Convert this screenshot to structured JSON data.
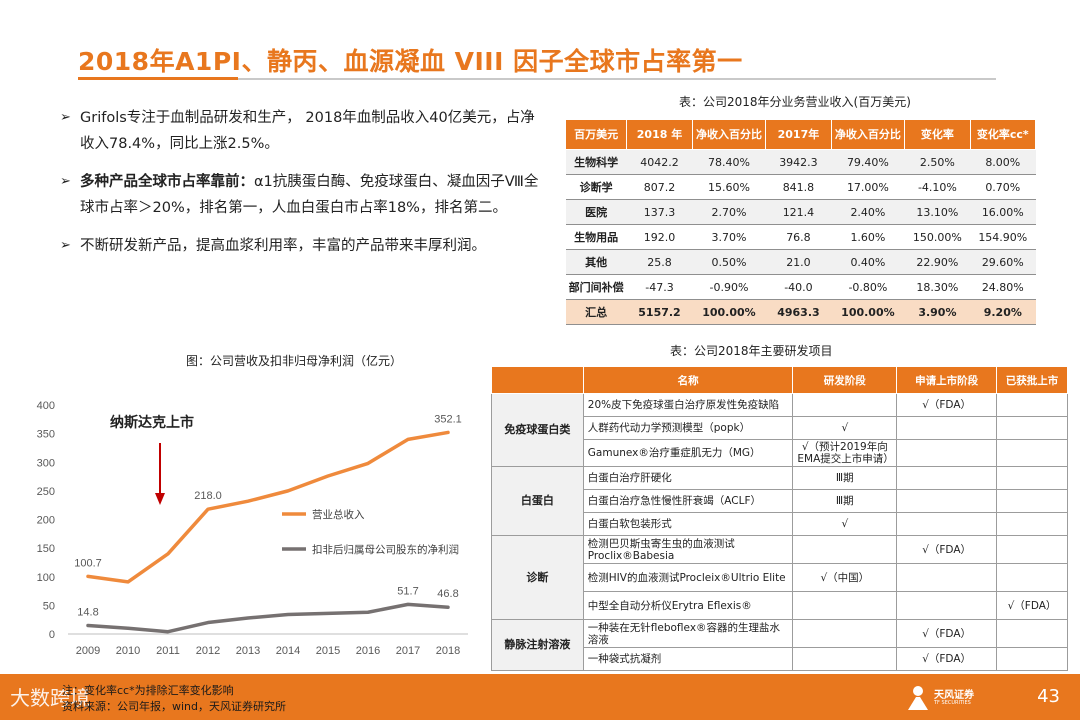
{
  "title": "2018年A1PI、静丙、血源凝血 VIII 因子全球市占率第一",
  "bullets": [
    {
      "arrow": "➢",
      "bold": "",
      "text": "Grifols专注于血制品研发和生产， 2018年血制品收入40亿美元，占净收入78.4%，同比上涨2.5%。"
    },
    {
      "arrow": "➢",
      "bold": "多种产品全球市占率靠前：",
      "text": "α1抗胰蛋白酶、免疫球蛋白、凝血因子Ⅷ全球市占率＞20%，排名第一，人血白蛋白市占率18%，排名第二。"
    },
    {
      "arrow": "➢",
      "bold": "",
      "text": "不断研发新产品，提高血浆利用率，丰富的产品带来丰厚利润。"
    }
  ],
  "table1": {
    "caption": "表：公司2018年分业务营业收入(百万美元)",
    "headers": [
      "百万美元",
      "2018 年",
      "净收入百分比",
      "2017年",
      "净收入百分比",
      "变化率",
      "变化率cc*"
    ],
    "rows": [
      [
        "生物科学",
        "4042.2",
        "78.40%",
        "3942.3",
        "79.40%",
        "2.50%",
        "8.00%"
      ],
      [
        "诊断学",
        "807.2",
        "15.60%",
        "841.8",
        "17.00%",
        "-4.10%",
        "0.70%"
      ],
      [
        "医院",
        "137.3",
        "2.70%",
        "121.4",
        "2.40%",
        "13.10%",
        "16.00%"
      ],
      [
        "生物用品",
        "192.0",
        "3.70%",
        "76.8",
        "1.60%",
        "150.00%",
        "154.90%"
      ],
      [
        "其他",
        "25.8",
        "0.50%",
        "21.0",
        "0.40%",
        "22.90%",
        "29.60%"
      ],
      [
        "部门间补偿",
        "-47.3",
        "-0.90%",
        "-40.0",
        "-0.80%",
        "18.30%",
        "24.80%"
      ],
      [
        "汇总",
        "5157.2",
        "100.00%",
        "4963.3",
        "100.00%",
        "3.90%",
        "9.20%"
      ]
    ]
  },
  "table2": {
    "caption": "表：公司2018年主要研发项目",
    "headers": [
      "",
      "名称",
      "研发阶段",
      "申请上市阶段",
      "已获批上市"
    ],
    "groups": [
      {
        "name": "免疫球蛋白类",
        "rows": [
          [
            "20%皮下免疫球蛋白治疗原发性免疫缺陷",
            "",
            "√（FDA）",
            ""
          ],
          [
            "人群药代动力学预测模型（popk）",
            "√",
            "",
            ""
          ],
          [
            "Gamunex®治疗重症肌无力（MG）",
            "√（预计2019年向EMA提交上市申请）",
            "",
            ""
          ]
        ]
      },
      {
        "name": "白蛋白",
        "rows": [
          [
            "白蛋白治疗肝硬化",
            "Ⅲ期",
            "",
            ""
          ],
          [
            "白蛋白治疗急性慢性肝衰竭（ACLF）",
            "Ⅲ期",
            "",
            ""
          ],
          [
            "白蛋白软包装形式",
            "√",
            "",
            ""
          ]
        ]
      },
      {
        "name": "诊断",
        "rows": [
          [
            "检测巴贝斯虫寄生虫的血液测试Proclix®Babesia",
            "",
            "√（FDA）",
            ""
          ],
          [
            "检测HIV的血液测试Procleix®Ultrio Elite",
            "√（中国）",
            "",
            ""
          ],
          [
            "中型全自动分析仪Erytra Eflexis®",
            "",
            "",
            "√（FDA）"
          ]
        ]
      },
      {
        "name": "静脉注射溶液",
        "rows": [
          [
            "一种装在无针fleboflex®容器的生理盐水溶液",
            "",
            "√（FDA）",
            ""
          ],
          [
            "一种袋式抗凝剂",
            "",
            "√（FDA）",
            ""
          ]
        ]
      }
    ]
  },
  "chart_data": {
    "type": "line",
    "title": "图：公司营收及扣非归母净利润（亿元）",
    "categories": [
      "2009",
      "2010",
      "2011",
      "2012",
      "2013",
      "2014",
      "2015",
      "2016",
      "2017",
      "2018"
    ],
    "series": [
      {
        "name": "营业总收入",
        "color": "#ef8a3c",
        "values": [
          100.7,
          91,
          140,
          218.0,
          232,
          250,
          276,
          298,
          340,
          352.1
        ],
        "labels": {
          "0": "100.7",
          "3": "218.0",
          "9": "352.1"
        }
      },
      {
        "name": "扣非后归属母公司股东的净利润",
        "color": "#767171",
        "values": [
          14.8,
          10,
          4,
          20,
          28,
          34,
          36,
          38,
          51.7,
          46.8
        ],
        "labels": {
          "0": "14.8",
          "8": "51.7",
          "9": "46.8"
        }
      }
    ],
    "ylim": [
      0,
      400
    ],
    "yticks": [
      0,
      50,
      100,
      150,
      200,
      250,
      300,
      350,
      400
    ],
    "annotation": "纳斯达克上市",
    "annotation_at": "2011"
  },
  "notes": [
    "注：变化率cc*为排除汇率变化影响",
    "资料来源：公司年报，wind，天风证券研究所"
  ],
  "footer": {
    "logo_name": "天风证券",
    "logo_sub": "TF SECURITIES",
    "page": "43",
    "watermark": "大数跨境"
  },
  "colors": {
    "accent": "#e8771e",
    "revenue": "#ef8a3c",
    "profit": "#767171"
  }
}
